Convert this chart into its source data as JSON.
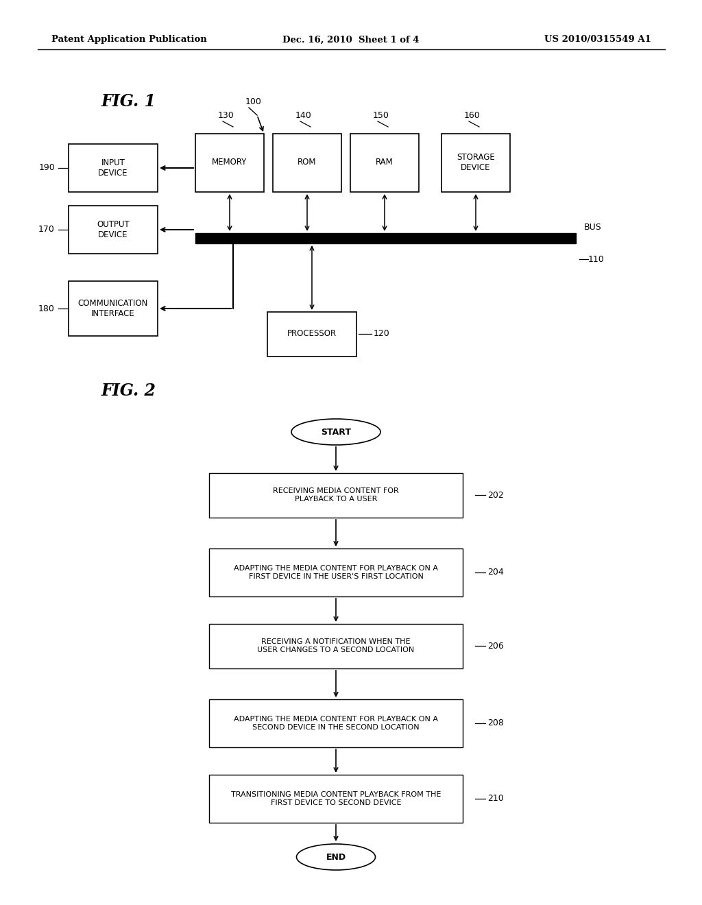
{
  "header_left": "Patent Application Publication",
  "header_center": "Dec. 16, 2010  Sheet 1 of 4",
  "header_right": "US 2010/0315549 A1",
  "fig1_label": "FIG. 1",
  "fig2_label": "FIG. 2",
  "background_color": "#ffffff"
}
